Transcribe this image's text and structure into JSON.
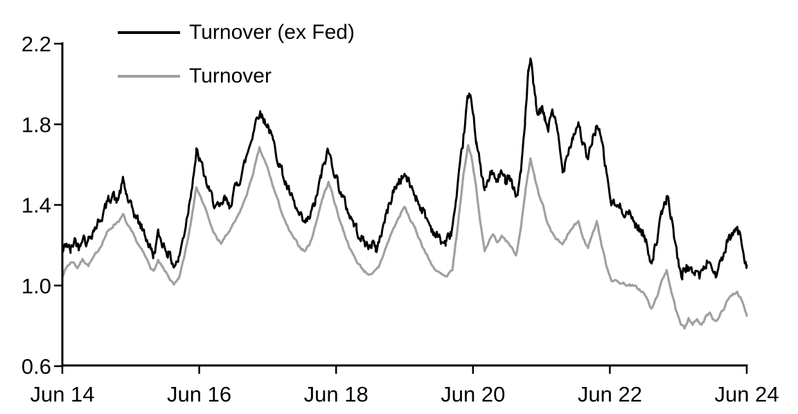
{
  "chart_data": {
    "type": "line",
    "title": "",
    "x_axis": {
      "tick_labels": [
        "Jun 14",
        "Jun 16",
        "Jun 18",
        "Jun 20",
        "Jun 22",
        "Jun 24"
      ],
      "tick_positions_years_from_jun_2014": [
        0,
        2,
        4,
        6,
        8,
        10
      ],
      "range_years_from_jun_2014": [
        0,
        10
      ]
    },
    "y_axis": {
      "tick_labels": [
        "0.6",
        "1.0",
        "1.4",
        "1.8",
        "2.2"
      ],
      "ticks": [
        0.6,
        1.0,
        1.4,
        1.8,
        2.2
      ],
      "range": [
        0.6,
        2.2
      ]
    },
    "legend": {
      "position": "top-left"
    },
    "grid": "off",
    "series": [
      {
        "name": "Turnover (ex Fed)",
        "color": "#000000",
        "points_t_years_from_jun2014_value": [
          [
            0.0,
            1.16
          ],
          [
            0.06,
            1.21
          ],
          [
            0.12,
            1.17
          ],
          [
            0.18,
            1.23
          ],
          [
            0.24,
            1.19
          ],
          [
            0.3,
            1.26
          ],
          [
            0.36,
            1.21
          ],
          [
            0.44,
            1.27
          ],
          [
            0.52,
            1.31
          ],
          [
            0.6,
            1.36
          ],
          [
            0.68,
            1.43
          ],
          [
            0.74,
            1.46
          ],
          [
            0.79,
            1.41
          ],
          [
            0.85,
            1.47
          ],
          [
            0.89,
            1.52
          ],
          [
            0.93,
            1.46
          ],
          [
            0.98,
            1.4
          ],
          [
            1.05,
            1.36
          ],
          [
            1.12,
            1.31
          ],
          [
            1.2,
            1.26
          ],
          [
            1.28,
            1.19
          ],
          [
            1.33,
            1.15
          ],
          [
            1.4,
            1.25
          ],
          [
            1.47,
            1.21
          ],
          [
            1.55,
            1.16
          ],
          [
            1.63,
            1.1
          ],
          [
            1.7,
            1.13
          ],
          [
            1.78,
            1.26
          ],
          [
            1.85,
            1.4
          ],
          [
            1.92,
            1.57
          ],
          [
            1.96,
            1.66
          ],
          [
            2.02,
            1.61
          ],
          [
            2.08,
            1.54
          ],
          [
            2.15,
            1.46
          ],
          [
            2.22,
            1.41
          ],
          [
            2.3,
            1.37
          ],
          [
            2.37,
            1.43
          ],
          [
            2.44,
            1.39
          ],
          [
            2.5,
            1.46
          ],
          [
            2.58,
            1.52
          ],
          [
            2.66,
            1.6
          ],
          [
            2.74,
            1.7
          ],
          [
            2.82,
            1.81
          ],
          [
            2.88,
            1.87
          ],
          [
            2.93,
            1.83
          ],
          [
            3.0,
            1.8
          ],
          [
            3.08,
            1.71
          ],
          [
            3.17,
            1.61
          ],
          [
            3.26,
            1.51
          ],
          [
            3.35,
            1.43
          ],
          [
            3.45,
            1.35
          ],
          [
            3.54,
            1.3
          ],
          [
            3.62,
            1.34
          ],
          [
            3.7,
            1.42
          ],
          [
            3.78,
            1.54
          ],
          [
            3.84,
            1.62
          ],
          [
            3.88,
            1.67
          ],
          [
            3.94,
            1.61
          ],
          [
            4.02,
            1.52
          ],
          [
            4.1,
            1.43
          ],
          [
            4.2,
            1.35
          ],
          [
            4.3,
            1.28
          ],
          [
            4.4,
            1.22
          ],
          [
            4.48,
            1.19
          ],
          [
            4.53,
            1.22
          ],
          [
            4.58,
            1.17
          ],
          [
            4.65,
            1.25
          ],
          [
            4.74,
            1.36
          ],
          [
            4.83,
            1.46
          ],
          [
            4.92,
            1.52
          ],
          [
            5.0,
            1.55
          ],
          [
            5.08,
            1.5
          ],
          [
            5.17,
            1.44
          ],
          [
            5.27,
            1.37
          ],
          [
            5.37,
            1.3
          ],
          [
            5.46,
            1.25
          ],
          [
            5.54,
            1.22
          ],
          [
            5.6,
            1.21
          ],
          [
            5.68,
            1.26
          ],
          [
            5.76,
            1.42
          ],
          [
            5.85,
            1.7
          ],
          [
            5.92,
            1.92
          ],
          [
            5.95,
            1.94
          ],
          [
            6.0,
            1.87
          ],
          [
            6.05,
            1.72
          ],
          [
            6.11,
            1.58
          ],
          [
            6.17,
            1.47
          ],
          [
            6.23,
            1.52
          ],
          [
            6.28,
            1.57
          ],
          [
            6.34,
            1.51
          ],
          [
            6.41,
            1.56
          ],
          [
            6.47,
            1.52
          ],
          [
            6.53,
            1.56
          ],
          [
            6.6,
            1.48
          ],
          [
            6.64,
            1.44
          ],
          [
            6.7,
            1.56
          ],
          [
            6.76,
            1.82
          ],
          [
            6.81,
            2.05
          ],
          [
            6.84,
            2.12
          ],
          [
            6.88,
            2.0
          ],
          [
            6.92,
            1.9
          ],
          [
            6.96,
            1.84
          ],
          [
            7.0,
            1.88
          ],
          [
            7.05,
            1.82
          ],
          [
            7.1,
            1.78
          ],
          [
            7.16,
            1.88
          ],
          [
            7.21,
            1.8
          ],
          [
            7.26,
            1.7
          ],
          [
            7.31,
            1.56
          ],
          [
            7.38,
            1.67
          ],
          [
            7.46,
            1.74
          ],
          [
            7.54,
            1.81
          ],
          [
            7.61,
            1.7
          ],
          [
            7.68,
            1.62
          ],
          [
            7.75,
            1.73
          ],
          [
            7.81,
            1.8
          ],
          [
            7.88,
            1.71
          ],
          [
            7.95,
            1.56
          ],
          [
            8.02,
            1.41
          ],
          [
            8.1,
            1.39
          ],
          [
            8.18,
            1.38
          ],
          [
            8.27,
            1.36
          ],
          [
            8.37,
            1.31
          ],
          [
            8.48,
            1.26
          ],
          [
            8.55,
            1.19
          ],
          [
            8.61,
            1.12
          ],
          [
            8.68,
            1.22
          ],
          [
            8.76,
            1.35
          ],
          [
            8.83,
            1.44
          ],
          [
            8.89,
            1.36
          ],
          [
            8.95,
            1.22
          ],
          [
            9.01,
            1.1
          ],
          [
            9.06,
            1.05
          ],
          [
            9.12,
            1.1
          ],
          [
            9.18,
            1.06
          ],
          [
            9.25,
            1.08
          ],
          [
            9.31,
            1.05
          ],
          [
            9.37,
            1.08
          ],
          [
            9.44,
            1.13
          ],
          [
            9.5,
            1.08
          ],
          [
            9.56,
            1.05
          ],
          [
            9.63,
            1.12
          ],
          [
            9.71,
            1.2
          ],
          [
            9.79,
            1.25
          ],
          [
            9.85,
            1.28
          ],
          [
            9.91,
            1.24
          ],
          [
            9.96,
            1.16
          ],
          [
            10.0,
            1.1
          ]
        ]
      },
      {
        "name": "Turnover",
        "color": "#a0a0a0",
        "points_t_years_from_jun2014_value": [
          [
            0.0,
            1.05
          ],
          [
            0.08,
            1.1
          ],
          [
            0.15,
            1.12
          ],
          [
            0.22,
            1.09
          ],
          [
            0.3,
            1.13
          ],
          [
            0.38,
            1.1
          ],
          [
            0.46,
            1.14
          ],
          [
            0.55,
            1.19
          ],
          [
            0.65,
            1.26
          ],
          [
            0.75,
            1.3
          ],
          [
            0.85,
            1.33
          ],
          [
            0.89,
            1.35
          ],
          [
            0.95,
            1.3
          ],
          [
            1.02,
            1.26
          ],
          [
            1.1,
            1.21
          ],
          [
            1.2,
            1.15
          ],
          [
            1.28,
            1.1
          ],
          [
            1.33,
            1.07
          ],
          [
            1.4,
            1.12
          ],
          [
            1.48,
            1.08
          ],
          [
            1.56,
            1.04
          ],
          [
            1.63,
            1.0
          ],
          [
            1.7,
            1.03
          ],
          [
            1.78,
            1.14
          ],
          [
            1.86,
            1.28
          ],
          [
            1.92,
            1.41
          ],
          [
            1.96,
            1.49
          ],
          [
            2.02,
            1.44
          ],
          [
            2.1,
            1.37
          ],
          [
            2.18,
            1.29
          ],
          [
            2.26,
            1.23
          ],
          [
            2.32,
            1.21
          ],
          [
            2.4,
            1.25
          ],
          [
            2.48,
            1.29
          ],
          [
            2.56,
            1.34
          ],
          [
            2.65,
            1.41
          ],
          [
            2.74,
            1.5
          ],
          [
            2.82,
            1.6
          ],
          [
            2.88,
            1.68
          ],
          [
            2.94,
            1.63
          ],
          [
            3.0,
            1.58
          ],
          [
            3.08,
            1.49
          ],
          [
            3.17,
            1.4
          ],
          [
            3.26,
            1.31
          ],
          [
            3.35,
            1.25
          ],
          [
            3.45,
            1.2
          ],
          [
            3.54,
            1.17
          ],
          [
            3.62,
            1.21
          ],
          [
            3.7,
            1.3
          ],
          [
            3.78,
            1.41
          ],
          [
            3.85,
            1.48
          ],
          [
            3.89,
            1.51
          ],
          [
            3.95,
            1.45
          ],
          [
            4.03,
            1.35
          ],
          [
            4.12,
            1.26
          ],
          [
            4.22,
            1.17
          ],
          [
            4.32,
            1.11
          ],
          [
            4.42,
            1.07
          ],
          [
            4.52,
            1.05
          ],
          [
            4.62,
            1.09
          ],
          [
            4.72,
            1.18
          ],
          [
            4.82,
            1.27
          ],
          [
            4.92,
            1.34
          ],
          [
            5.0,
            1.39
          ],
          [
            5.08,
            1.33
          ],
          [
            5.17,
            1.27
          ],
          [
            5.27,
            1.19
          ],
          [
            5.37,
            1.12
          ],
          [
            5.47,
            1.07
          ],
          [
            5.56,
            1.05
          ],
          [
            5.62,
            1.04
          ],
          [
            5.7,
            1.08
          ],
          [
            5.78,
            1.3
          ],
          [
            5.86,
            1.55
          ],
          [
            5.93,
            1.7
          ],
          [
            5.98,
            1.64
          ],
          [
            6.04,
            1.5
          ],
          [
            6.1,
            1.33
          ],
          [
            6.17,
            1.17
          ],
          [
            6.23,
            1.22
          ],
          [
            6.29,
            1.26
          ],
          [
            6.35,
            1.21
          ],
          [
            6.42,
            1.25
          ],
          [
            6.48,
            1.23
          ],
          [
            6.55,
            1.2
          ],
          [
            6.63,
            1.14
          ],
          [
            6.7,
            1.28
          ],
          [
            6.77,
            1.48
          ],
          [
            6.84,
            1.63
          ],
          [
            6.9,
            1.54
          ],
          [
            6.96,
            1.46
          ],
          [
            7.02,
            1.4
          ],
          [
            7.08,
            1.31
          ],
          [
            7.15,
            1.26
          ],
          [
            7.22,
            1.23
          ],
          [
            7.31,
            1.2
          ],
          [
            7.4,
            1.26
          ],
          [
            7.47,
            1.29
          ],
          [
            7.54,
            1.32
          ],
          [
            7.61,
            1.23
          ],
          [
            7.68,
            1.19
          ],
          [
            7.75,
            1.26
          ],
          [
            7.81,
            1.32
          ],
          [
            7.88,
            1.2
          ],
          [
            7.95,
            1.1
          ],
          [
            8.02,
            1.03
          ],
          [
            8.1,
            1.02
          ],
          [
            8.2,
            1.01
          ],
          [
            8.3,
            1.0
          ],
          [
            8.4,
            0.99
          ],
          [
            8.5,
            0.96
          ],
          [
            8.56,
            0.92
          ],
          [
            8.61,
            0.88
          ],
          [
            8.68,
            0.94
          ],
          [
            8.76,
            1.02
          ],
          [
            8.83,
            1.08
          ],
          [
            8.9,
            0.97
          ],
          [
            8.97,
            0.87
          ],
          [
            9.04,
            0.8
          ],
          [
            9.09,
            0.79
          ],
          [
            9.15,
            0.84
          ],
          [
            9.21,
            0.81
          ],
          [
            9.28,
            0.83
          ],
          [
            9.34,
            0.8
          ],
          [
            9.4,
            0.84
          ],
          [
            9.46,
            0.87
          ],
          [
            9.52,
            0.83
          ],
          [
            9.58,
            0.83
          ],
          [
            9.65,
            0.88
          ],
          [
            9.73,
            0.93
          ],
          [
            9.8,
            0.96
          ],
          [
            9.86,
            0.97
          ],
          [
            9.92,
            0.93
          ],
          [
            10.0,
            0.85
          ]
        ]
      }
    ]
  },
  "colors": {
    "background": "#ffffff",
    "axis": "#000000",
    "tick_text": "#000000"
  }
}
